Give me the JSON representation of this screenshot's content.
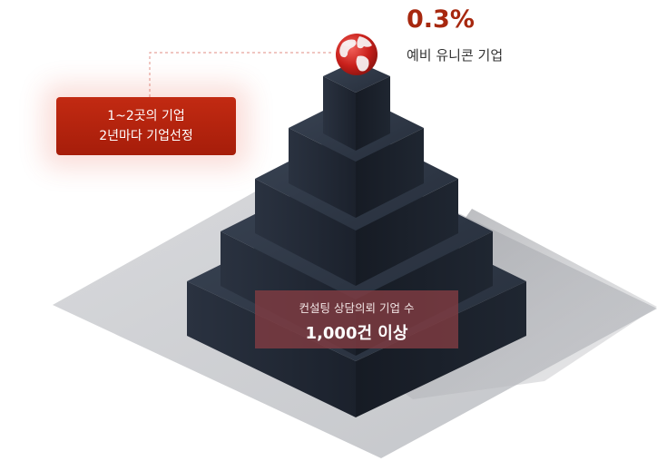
{
  "callout": {
    "line1": "1~2곳의 기업",
    "line2": "2년마다 기업선정"
  },
  "top_stat": {
    "value": "0.3%",
    "caption": "예비 유니콘 기업"
  },
  "base_stat": {
    "caption": "컨설팅 상담의뢰 기업 수",
    "value": "1,000건 이상"
  },
  "colors": {
    "accent": "#a7280f",
    "box_red": "#b8230e",
    "block_dark": "#1c2330",
    "base_gray": "#cfd0d4",
    "stat_box": "#803c42"
  },
  "icons": {
    "globe": "globe-icon"
  }
}
